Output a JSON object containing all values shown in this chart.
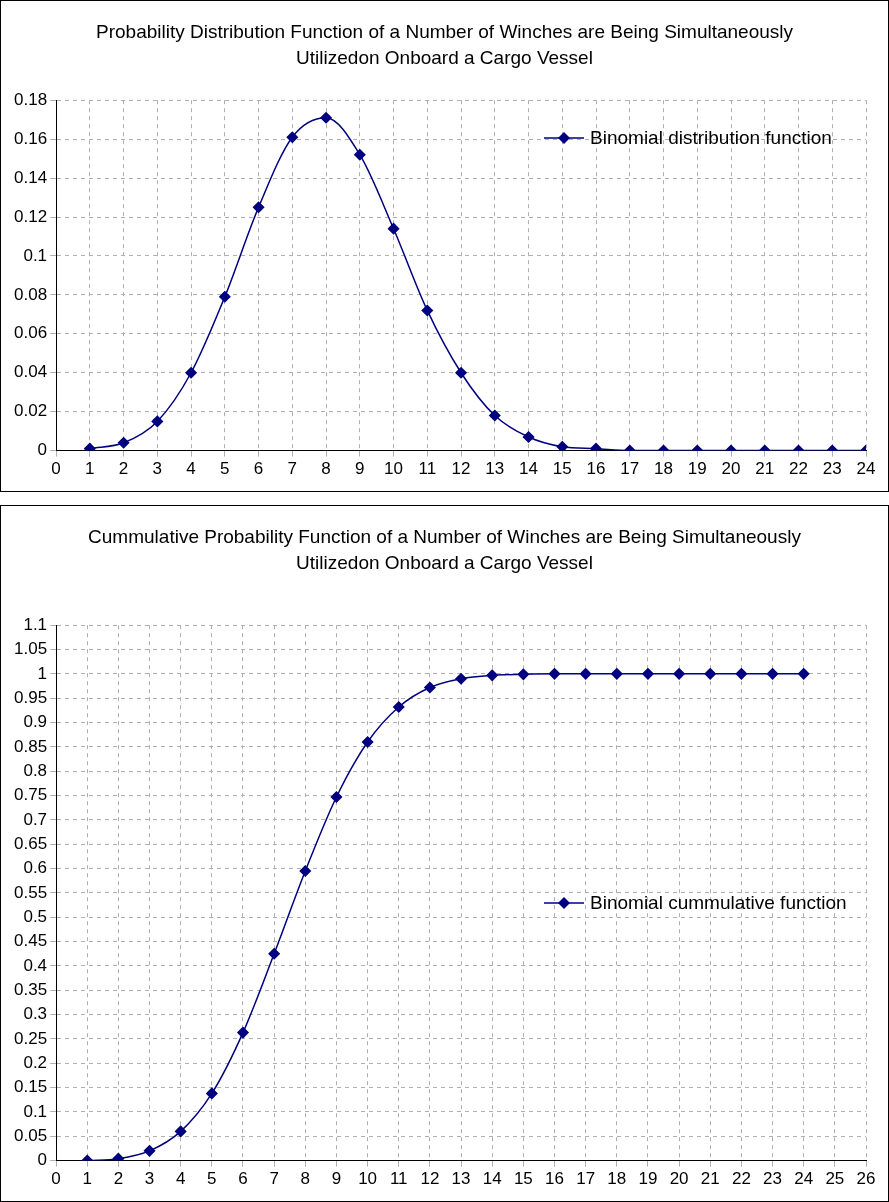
{
  "chart_data": [
    {
      "type": "line",
      "title": "Probability Distribution Function of a Number of Winches are Being Simultaneously Utilizedon Onboard a Cargo Vessel",
      "x": [
        1,
        2,
        3,
        4,
        5,
        6,
        7,
        8,
        9,
        10,
        11,
        12,
        13,
        14,
        15,
        16,
        17,
        18,
        19,
        20,
        21,
        22,
        23,
        24
      ],
      "series": [
        {
          "name": "Binomial distribution function",
          "color": "#000080",
          "values": [
            0.001,
            0.004,
            0.015,
            0.04,
            0.079,
            0.125,
            0.161,
            0.171,
            0.152,
            0.114,
            0.072,
            0.04,
            0.018,
            0.007,
            0.002,
            0.001,
            0,
            0,
            0,
            0,
            0,
            0,
            0,
            0
          ]
        }
      ],
      "xlim": [
        0,
        24
      ],
      "xticks": [
        0,
        1,
        2,
        3,
        4,
        5,
        6,
        7,
        8,
        9,
        10,
        11,
        12,
        13,
        14,
        15,
        16,
        17,
        18,
        19,
        20,
        21,
        22,
        23,
        24
      ],
      "ylim": [
        0,
        0.18
      ],
      "yticks": [
        0,
        0.02,
        0.04,
        0.06,
        0.08,
        0.1,
        0.12,
        0.14,
        0.16,
        0.18
      ],
      "grid": true,
      "legend": "top right",
      "marker": "diamond",
      "line_style": "solid"
    },
    {
      "type": "line",
      "title": "Cummulative Probability Function of a Number of Winches are Being Simultaneously Utilizedon Onboard a Cargo Vessel",
      "x": [
        1,
        2,
        3,
        4,
        5,
        6,
        7,
        8,
        9,
        10,
        11,
        12,
        13,
        14,
        15,
        16,
        17,
        18,
        19,
        20,
        21,
        22,
        23,
        24
      ],
      "series": [
        {
          "name": "Binomial cummulative function",
          "color": "#000080",
          "values": [
            0,
            0.004,
            0.02,
            0.06,
            0.138,
            0.263,
            0.425,
            0.595,
            0.747,
            0.86,
            0.932,
            0.972,
            0.99,
            0.997,
            0.999,
            1,
            1,
            1,
            1,
            1,
            1,
            1,
            1,
            1
          ]
        }
      ],
      "xlim": [
        0,
        26
      ],
      "xticks": [
        0,
        1,
        2,
        3,
        4,
        5,
        6,
        7,
        8,
        9,
        10,
        11,
        12,
        13,
        14,
        15,
        16,
        17,
        18,
        19,
        20,
        21,
        22,
        23,
        24,
        25,
        26
      ],
      "ylim": [
        0,
        1.1
      ],
      "yticks": [
        0,
        0.05,
        0.1,
        0.15,
        0.2,
        0.25,
        0.3,
        0.35,
        0.4,
        0.45,
        0.5,
        0.55,
        0.6,
        0.65,
        0.7,
        0.75,
        0.8,
        0.85,
        0.9,
        0.95,
        1,
        1.05,
        1.1
      ],
      "grid": true,
      "legend": "right",
      "marker": "diamond",
      "line_style": "solid"
    }
  ]
}
